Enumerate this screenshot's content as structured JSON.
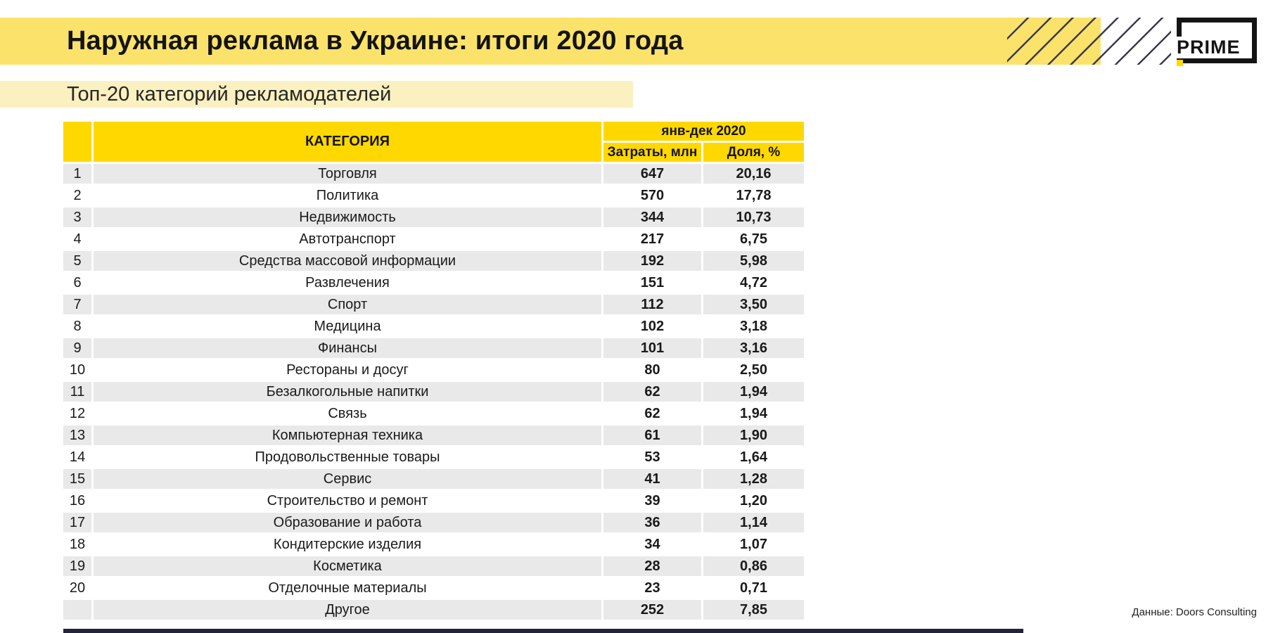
{
  "header": {
    "title": "Наружная реклама в Украине: итоги 2020 года",
    "bar_color": "#FBE26B",
    "logo": {
      "text": "PRIME",
      "frame_color": "#141414",
      "accent_color": "#FFD800"
    }
  },
  "subtitle": {
    "text": "Топ-20 категорий рекламодателей",
    "bar_color": "#FAF0C0"
  },
  "table": {
    "header": {
      "rank": "",
      "category": "КАТЕГОРИЯ",
      "period": "янв-дек 2020",
      "spend": "Затраты, млн",
      "share": "Доля, %"
    },
    "header_color": "#FFD800",
    "alt_row_color": "#E9E9E9",
    "rows": [
      {
        "rank": "1",
        "category": "Торговля",
        "spend": "647",
        "share": "20,16"
      },
      {
        "rank": "2",
        "category": "Политика",
        "spend": "570",
        "share": "17,78"
      },
      {
        "rank": "3",
        "category": "Недвижимость",
        "spend": "344",
        "share": "10,73"
      },
      {
        "rank": "4",
        "category": "Автотранспорт",
        "spend": "217",
        "share": "6,75"
      },
      {
        "rank": "5",
        "category": "Средства массовой информации",
        "spend": "192",
        "share": "5,98"
      },
      {
        "rank": "6",
        "category": "Развлечения",
        "spend": "151",
        "share": "4,72"
      },
      {
        "rank": "7",
        "category": "Спорт",
        "spend": "112",
        "share": "3,50"
      },
      {
        "rank": "8",
        "category": "Медицина",
        "spend": "102",
        "share": "3,18"
      },
      {
        "rank": "9",
        "category": "Финансы",
        "spend": "101",
        "share": "3,16"
      },
      {
        "rank": "10",
        "category": "Рестораны и досуг",
        "spend": "80",
        "share": "2,50"
      },
      {
        "rank": "11",
        "category": "Безалкогольные напитки",
        "spend": "62",
        "share": "1,94"
      },
      {
        "rank": "12",
        "category": "Связь",
        "spend": "62",
        "share": "1,94"
      },
      {
        "rank": "13",
        "category": "Компьютерная техника",
        "spend": "61",
        "share": "1,90"
      },
      {
        "rank": "14",
        "category": "Продовольственные товары",
        "spend": "53",
        "share": "1,64"
      },
      {
        "rank": "15",
        "category": "Сервис",
        "spend": "41",
        "share": "1,28"
      },
      {
        "rank": "16",
        "category": "Строительство и ремонт",
        "spend": "39",
        "share": "1,20"
      },
      {
        "rank": "17",
        "category": "Образование и работа",
        "spend": "36",
        "share": "1,14"
      },
      {
        "rank": "18",
        "category": "Кондитерские изделия",
        "spend": "34",
        "share": "1,07"
      },
      {
        "rank": "19",
        "category": "Косметика",
        "spend": "28",
        "share": "0,86"
      },
      {
        "rank": "20",
        "category": "Отделочные материалы",
        "spend": "23",
        "share": "0,71"
      },
      {
        "rank": "",
        "category": "Другое",
        "spend": "252",
        "share": "7,85"
      }
    ]
  },
  "footer": {
    "source": "Данные: Doors Consulting"
  },
  "chart_data": {
    "type": "table",
    "title": "Наружная реклама в Украине: итоги 2020 года — Топ-20 категорий рекламодателей",
    "columns": [
      "№",
      "КАТЕГОРИЯ",
      "янв-дек 2020: Затраты, млн",
      "янв-дек 2020: Доля, %"
    ],
    "rows": [
      [
        "1",
        "Торговля",
        647,
        20.16
      ],
      [
        "2",
        "Политика",
        570,
        17.78
      ],
      [
        "3",
        "Недвижимость",
        344,
        10.73
      ],
      [
        "4",
        "Автотранспорт",
        217,
        6.75
      ],
      [
        "5",
        "Средства массовой информации",
        192,
        5.98
      ],
      [
        "6",
        "Развлечения",
        151,
        4.72
      ],
      [
        "7",
        "Спорт",
        112,
        3.5
      ],
      [
        "8",
        "Медицина",
        102,
        3.18
      ],
      [
        "9",
        "Финансы",
        101,
        3.16
      ],
      [
        "10",
        "Рестораны и досуг",
        80,
        2.5
      ],
      [
        "11",
        "Безалкогольные напитки",
        62,
        1.94
      ],
      [
        "12",
        "Связь",
        62,
        1.94
      ],
      [
        "13",
        "Компьютерная техника",
        61,
        1.9
      ],
      [
        "14",
        "Продовольственные товары",
        53,
        1.64
      ],
      [
        "15",
        "Сервис",
        41,
        1.28
      ],
      [
        "16",
        "Строительство и ремонт",
        39,
        1.2
      ],
      [
        "17",
        "Образование и работа",
        36,
        1.14
      ],
      [
        "18",
        "Кондитерские изделия",
        34,
        1.07
      ],
      [
        "19",
        "Косметика",
        28,
        0.86
      ],
      [
        "20",
        "Отделочные материалы",
        23,
        0.71
      ],
      [
        "",
        "Другое",
        252,
        7.85
      ]
    ],
    "source": "Данные: Doors Consulting"
  }
}
